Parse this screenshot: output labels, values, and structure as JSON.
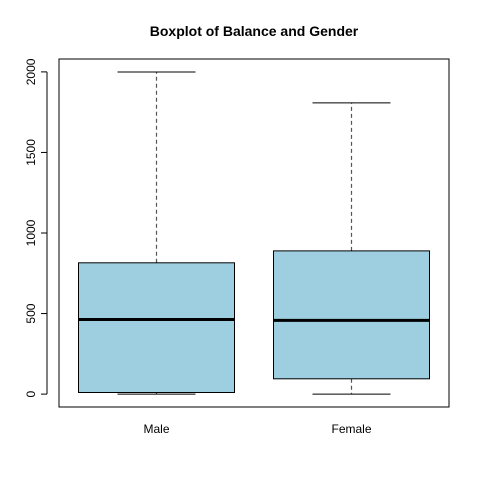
{
  "chart_data": {
    "type": "boxplot",
    "title": "Boxplot of Balance and Gender",
    "xlabel": "",
    "ylabel": "",
    "categories": [
      "Male",
      "Female"
    ],
    "ylim": [
      -80,
      2080
    ],
    "y_ticks": [
      0,
      500,
      1000,
      1500,
      2000
    ],
    "boxes": [
      {
        "min": 0,
        "q1": 10,
        "median": 463,
        "q3": 815,
        "max": 1999
      },
      {
        "min": 0,
        "q1": 95,
        "median": 458,
        "q3": 889,
        "max": 1808
      }
    ],
    "box_fill": "#9ecfe0",
    "grid": false,
    "legend": "none"
  }
}
